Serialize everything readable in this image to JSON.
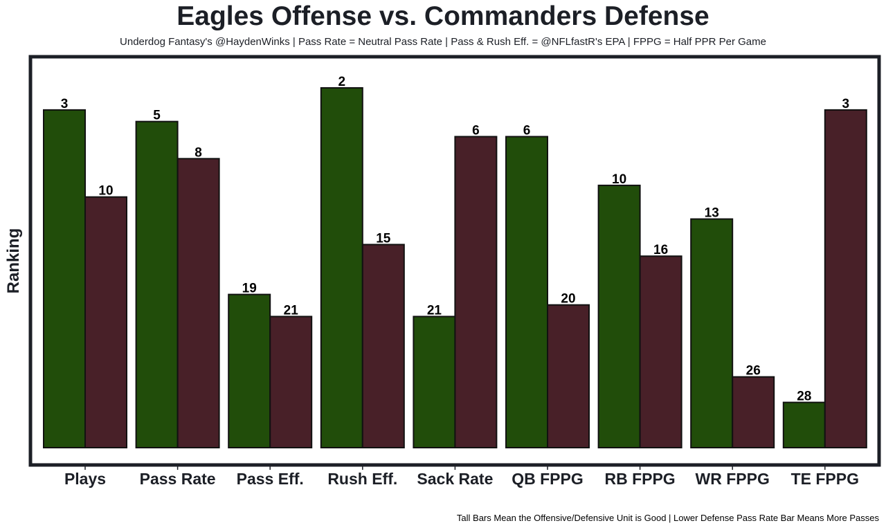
{
  "chart_data": {
    "type": "bar",
    "title": "Eagles Offense vs. Commanders Defense",
    "subtitle": "Underdog Fantasy's @HaydenWinks | Pass Rate = Neutral Pass Rate | Pass & Rush Eff. = @NFLfastR's EPA | FPPG = Half PPR Per Game",
    "footnote": "Tall Bars Mean the Offensive/Defensive Unit is Good | Lower Defense Pass Rate Bar Means More Passes",
    "xlabel": "",
    "ylabel": "Ranking",
    "ylim": [
      0,
      32
    ],
    "grid": false,
    "legend": "none",
    "categories": [
      "Plays",
      "Pass Rate",
      "Pass Eff.",
      "Rush Eff.",
      "Sack Rate",
      "QB FPPG",
      "RB FPPG",
      "WR FPPG",
      "TE FPPG"
    ],
    "series": [
      {
        "name": "Eagles Offense",
        "color": "#214d0a",
        "ranks": [
          "3",
          "5",
          "19",
          "2",
          "21",
          "6",
          "10",
          "13",
          "28"
        ],
        "values": [
          29.1,
          28.1,
          13.2,
          31.0,
          11.3,
          26.8,
          22.6,
          19.7,
          3.9
        ]
      },
      {
        "name": "Commanders Defense",
        "color": "#482028",
        "ranks": [
          "10",
          "8",
          "21",
          "15",
          "6",
          "20",
          "16",
          "26",
          "3"
        ],
        "values": [
          21.6,
          24.9,
          11.3,
          17.5,
          26.8,
          12.3,
          16.5,
          6.1,
          29.1
        ]
      }
    ],
    "colors": {
      "frame": "#1c1f26",
      "bar_edge": "#111111",
      "background": "#ffffff"
    }
  }
}
